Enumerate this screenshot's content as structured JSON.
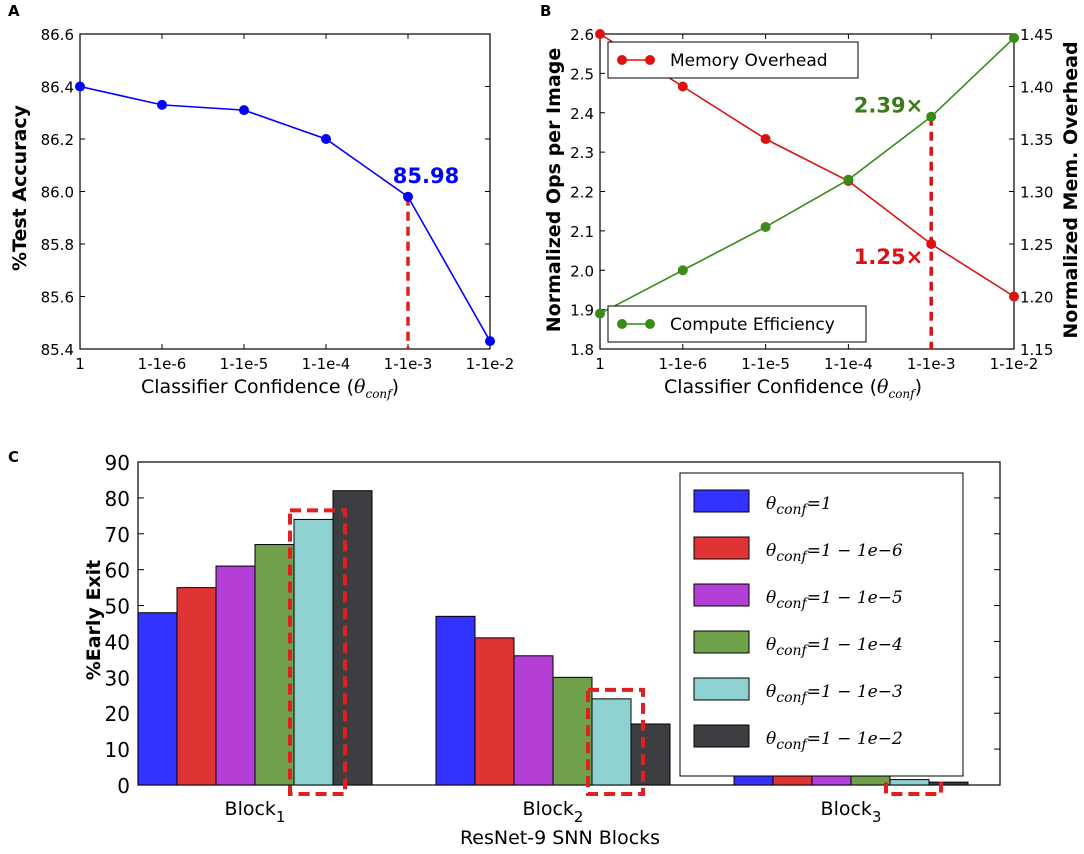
{
  "panels": {
    "a": "A",
    "b": "B",
    "c": "C"
  },
  "chart_data": [
    {
      "type": "line",
      "panel": "A",
      "x_categories": [
        "1",
        "1-1e-6",
        "1-1e-5",
        "1-1e-4",
        "1-1e-3",
        "1-1e-2"
      ],
      "values": [
        86.4,
        86.33,
        86.31,
        86.2,
        85.98,
        85.43
      ],
      "ylabel": "%Test Accuracy",
      "xlabel": "Classifier Confidence (",
      "xlabel_sym": "θ",
      "xlabel_sub": "conf",
      "xlabel_end": ")",
      "ylim": [
        85.4,
        86.6
      ],
      "yticks": [
        "85.4",
        "85.6",
        "85.8",
        "86.0",
        "86.2",
        "86.4",
        "86.6"
      ],
      "annotation": {
        "text": "85.98",
        "x_index": 4
      },
      "color": "#0000ff",
      "marker_color": "#dd2222"
    },
    {
      "type": "line",
      "panel": "B",
      "x_categories": [
        "1",
        "1-1e-6",
        "1-1e-5",
        "1-1e-4",
        "1-1e-3",
        "1-1e-2"
      ],
      "xlabel": "Classifier Confidence (",
      "xlabel_sym": "θ",
      "xlabel_sub": "conf",
      "xlabel_end": ")",
      "ylabel_left": "Normalized Ops per Image",
      "ylabel_right": "Normalized Mem. Overhead",
      "ylim_left": [
        1.8,
        2.6
      ],
      "ylim_right": [
        1.15,
        1.45
      ],
      "yticks_left": [
        "1.8",
        "1.9",
        "2.0",
        "2.1",
        "2.2",
        "2.3",
        "2.4",
        "2.5",
        "2.6"
      ],
      "yticks_right": [
        "1.15",
        "1.20",
        "1.25",
        "1.30",
        "1.35",
        "1.40",
        "1.45"
      ],
      "series": [
        {
          "name": "Memory Overhead",
          "axis": "right",
          "color": "#dd1111",
          "values": [
            1.45,
            1.4,
            1.35,
            1.31,
            1.25,
            1.2
          ]
        },
        {
          "name": "Compute Efficiency",
          "axis": "left",
          "color": "#3a8a1a",
          "values": [
            1.89,
            2.0,
            2.11,
            2.23,
            2.39,
            2.59
          ]
        }
      ],
      "annotations": [
        {
          "text": "2.39×",
          "color": "#3a7a1a"
        },
        {
          "text": "1.25×",
          "color": "#dd1111"
        }
      ]
    },
    {
      "type": "bar",
      "panel": "C",
      "categories": [
        {
          "base": "Block",
          "sub": "1"
        },
        {
          "base": "Block",
          "sub": "2"
        },
        {
          "base": "Block",
          "sub": "3"
        }
      ],
      "ylabel": "%Early Exit",
      "xlabel": "ResNet-9 SNN Blocks",
      "ylim": [
        0,
        90
      ],
      "yticks": [
        "0",
        "10",
        "20",
        "30",
        "40",
        "50",
        "60",
        "70",
        "80",
        "90"
      ],
      "series": [
        {
          "legend_sym": "θ",
          "legend_sub": "conf",
          "legend_rhs": "=1",
          "color": "#3333ff",
          "values": [
            48,
            47,
            4.5
          ]
        },
        {
          "legend_sym": "θ",
          "legend_sub": "conf",
          "legend_rhs": "=1 − 1e−6",
          "color": "#e03434",
          "values": [
            55,
            41,
            3.8
          ]
        },
        {
          "legend_sym": "θ",
          "legend_sub": "conf",
          "legend_rhs": "=1 − 1e−5",
          "color": "#b43fd6",
          "values": [
            61,
            36,
            3.0
          ]
        },
        {
          "legend_sym": "θ",
          "legend_sub": "conf",
          "legend_rhs": "=1 − 1e−4",
          "color": "#6fa04a",
          "values": [
            67,
            30,
            2.5
          ]
        },
        {
          "legend_sym": "θ",
          "legend_sub": "conf",
          "legend_rhs": "=1 − 1e−3",
          "color": "#8fd0d0",
          "values": [
            74,
            24,
            1.5
          ]
        },
        {
          "legend_sym": "θ",
          "legend_sub": "conf",
          "legend_rhs": "=1 − 1e−2",
          "color": "#3d3e42",
          "values": [
            82,
            17,
            0.8
          ]
        }
      ]
    }
  ]
}
